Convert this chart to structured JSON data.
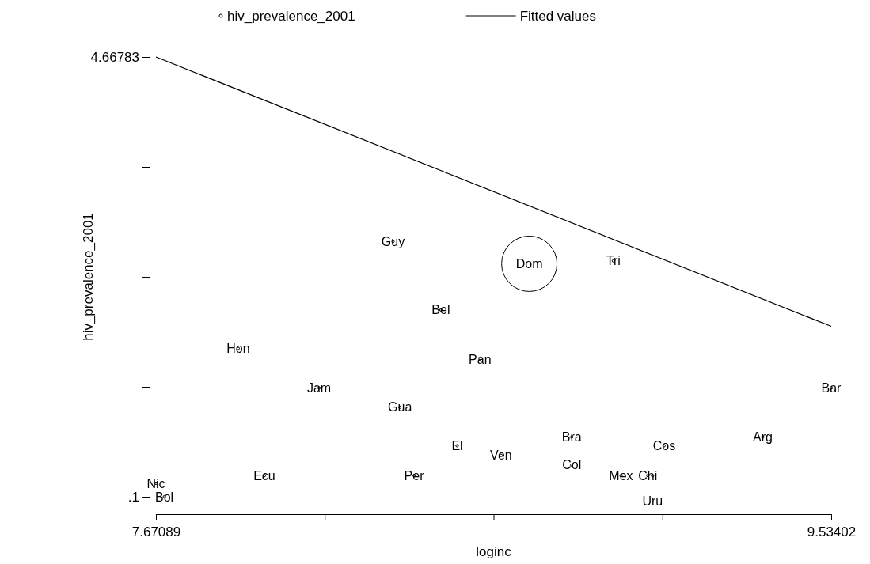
{
  "chart_data": {
    "type": "scatter",
    "xlabel": "loginc",
    "ylabel": "hiv_prevalence_2001",
    "xlim": [
      7.67089,
      9.53402
    ],
    "ylim": [
      0.1,
      4.66783
    ],
    "xticks": [
      7.67089,
      {
        "value": 8.13667,
        "label": null
      },
      {
        "value": 8.60246,
        "label": null
      },
      {
        "value": 9.06824,
        "label": null
      },
      9.53402
    ],
    "yticks": [
      {
        "value": 0.1,
        "label": ".1"
      },
      {
        "value": 1.24196,
        "label": null
      },
      {
        "value": 2.38392,
        "label": null
      },
      {
        "value": 3.52587,
        "label": null
      },
      4.66783
    ],
    "grid": false,
    "legend": "top",
    "series": [
      {
        "name": "hiv_prevalence_2001",
        "type": "bubble",
        "color": "#000000",
        "x": [
          7.671,
          7.694,
          7.898,
          7.97,
          8.121,
          8.325,
          8.344,
          8.383,
          8.457,
          8.502,
          8.565,
          8.623,
          8.701,
          8.818,
          8.818,
          8.933,
          8.954,
          9.028,
          9.041,
          9.073,
          9.345,
          9.534
        ],
        "values": [
          0.24,
          0.1,
          1.64,
          0.32,
          1.23,
          2.75,
          1.03,
          0.32,
          2.04,
          0.63,
          1.53,
          0.53,
          2.52,
          0.72,
          0.43,
          2.55,
          0.32,
          0.32,
          0.32,
          0.63,
          0.72,
          1.23
        ],
        "sizes": [
          0.002,
          0.002,
          0.002,
          0.002,
          0.002,
          0.002,
          0.002,
          0.002,
          0.002,
          0.002,
          0.002,
          0.002,
          1,
          0.002,
          0.002,
          0.002,
          0.002,
          0.002,
          0.002,
          0.002,
          0.002,
          0.002
        ]
      },
      {
        "name": "Fitted values",
        "type": "line",
        "marker": "none",
        "color": "#000000",
        "x": [
          7.67089,
          9.53402
        ],
        "values": [
          4.66783,
          1.87
        ]
      }
    ],
    "annotations": [
      {
        "text": "Nic",
        "x": 7.671,
        "y": 0.24
      },
      {
        "text": "Bol",
        "x": 7.694,
        "y": 0.1
      },
      {
        "text": "Hon",
        "x": 7.898,
        "y": 1.64
      },
      {
        "text": "Ecu",
        "x": 7.97,
        "y": 0.32
      },
      {
        "text": "Jam",
        "x": 8.121,
        "y": 1.23
      },
      {
        "text": "Guy",
        "x": 8.325,
        "y": 2.75
      },
      {
        "text": "Gua",
        "x": 8.344,
        "y": 1.03
      },
      {
        "text": "Per",
        "x": 8.383,
        "y": 0.32
      },
      {
        "text": "Bel",
        "x": 8.457,
        "y": 2.04
      },
      {
        "text": "El",
        "x": 8.502,
        "y": 0.63
      },
      {
        "text": "Pan",
        "x": 8.565,
        "y": 1.53
      },
      {
        "text": "Ven",
        "x": 8.623,
        "y": 0.53
      },
      {
        "text": "Dom",
        "x": 8.701,
        "y": 2.52
      },
      {
        "text": "Bra",
        "x": 8.818,
        "y": 0.72
      },
      {
        "text": "Col",
        "x": 8.818,
        "y": 0.43
      },
      {
        "text": "Tri",
        "x": 8.933,
        "y": 2.55
      },
      {
        "text": "Mex",
        "x": 8.954,
        "y": 0.32
      },
      {
        "text": "Chi",
        "x": 9.028,
        "y": 0.32
      },
      {
        "text": "Uru",
        "x": 9.041,
        "y": 0.32
      },
      {
        "text": "Cos",
        "x": 9.073,
        "y": 0.63
      },
      {
        "text": "Arg",
        "x": 9.345,
        "y": 0.72
      },
      {
        "text": "Bar",
        "x": 9.534,
        "y": 1.23
      }
    ]
  }
}
